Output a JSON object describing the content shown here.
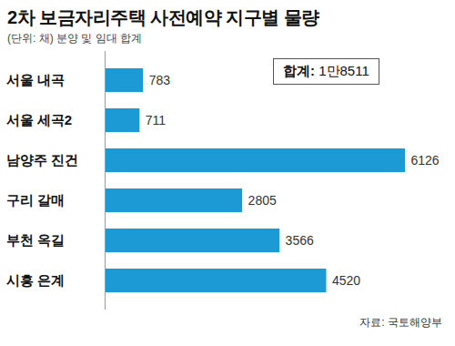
{
  "chart_data": {
    "type": "bar",
    "title": "2차 보금자리주택 사전예약 지구별 물량",
    "subtitle": "(단위: 채) 분양 및 임대 합계",
    "annotations": [
      "합계: 1만8511"
    ],
    "source": "자료: 국토해양부",
    "orientation": "horizontal",
    "categories": [
      "서울 내곡",
      "서울 세곡2",
      "남양주 진건",
      "구리 갈매",
      "부천 옥길",
      "시흥 은계"
    ],
    "values": [
      783,
      711,
      6126,
      2805,
      3566,
      4520
    ],
    "color": "#1c9ad6",
    "xlim": [
      0,
      6126
    ],
    "data_labels": true,
    "tick_labels": "y",
    "grid": false
  }
}
